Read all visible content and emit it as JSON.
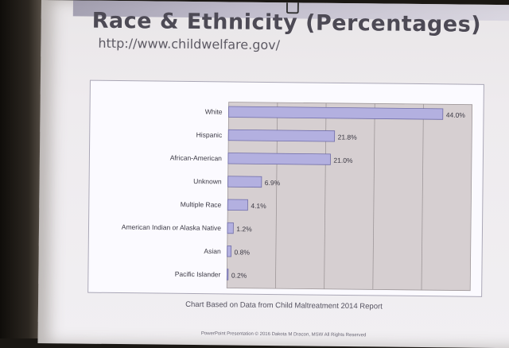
{
  "slide": {
    "title": "Race & Ethnicity (Percentages)",
    "url": "http://www.childwelfare.gov/",
    "caption": "Chart Based on Data from Child Maltreatment 2014 Report",
    "footer": "PowerPoint Presentation © 2016 Dakota M Dracon, MSW All Rights Reserved"
  },
  "colors": {
    "bar_fill": "#b3b0e0",
    "plot_bg": "#d6cfd1",
    "gridline": "#9e9799"
  },
  "chart_data": {
    "type": "bar",
    "orientation": "horizontal",
    "title": "",
    "xlabel": "",
    "ylabel": "",
    "xlim": [
      0,
      50
    ],
    "grid": true,
    "categories": [
      "White",
      "Hispanic",
      "African-American",
      "Unknown",
      "Multiple Race",
      "American Indian or Alaska Native",
      "Asian",
      "Pacific Islander"
    ],
    "values": [
      44.0,
      21.8,
      21.0,
      6.9,
      4.1,
      1.2,
      0.8,
      0.2
    ],
    "value_labels": [
      "44.0%",
      "21.8%",
      "21.0%",
      "6.9%",
      "4.1%",
      "1.2%",
      "0.8%",
      "0.2%"
    ]
  }
}
